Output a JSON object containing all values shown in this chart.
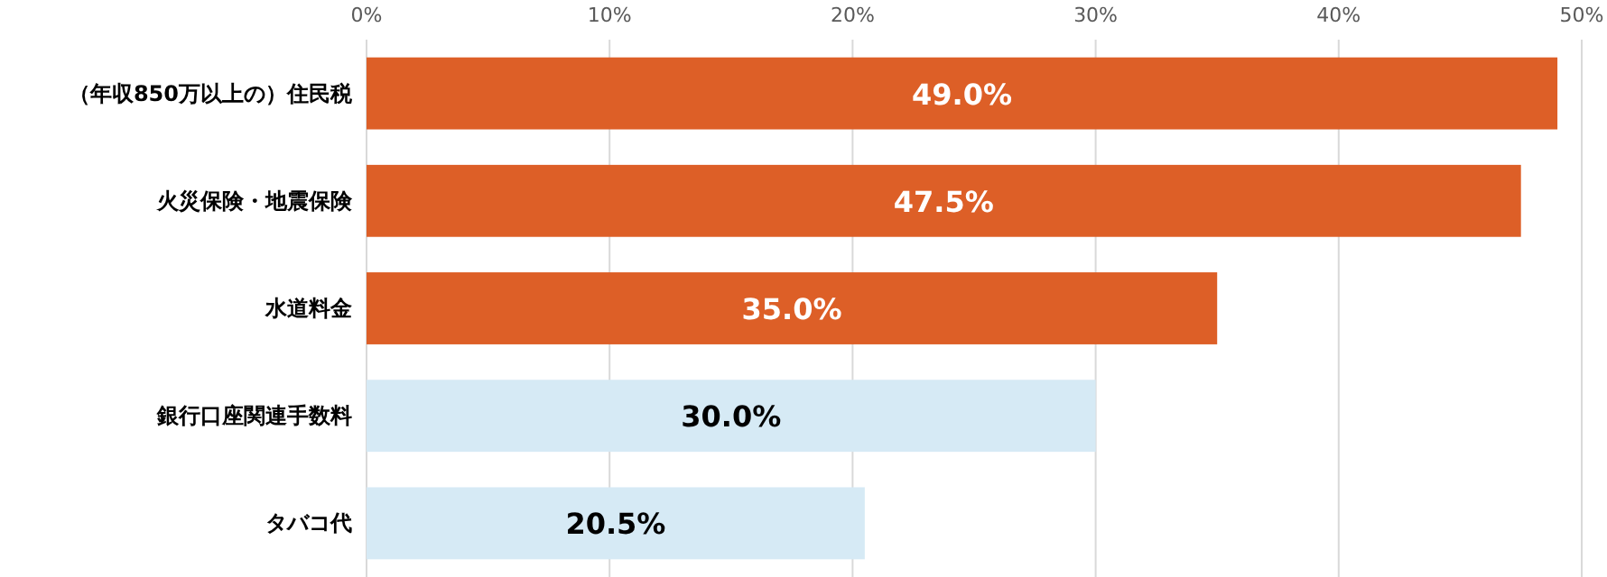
{
  "chart_data": {
    "type": "bar",
    "orientation": "horizontal",
    "categories": [
      "（年収850万以上の）住民税",
      "火災保険・地震保険",
      "水道料金",
      "銀行口座関連手数料",
      "タバコ代"
    ],
    "values": [
      49.0,
      47.5,
      35.0,
      30.0,
      20.5
    ],
    "colors": [
      "#dd5f27",
      "#dd5f27",
      "#dd5f27",
      "#d6eaf5",
      "#d6eaf5"
    ],
    "value_labels": [
      "49.0%",
      "47.5%",
      "35.0%",
      "30.0%",
      "20.5%"
    ],
    "xlim": [
      0,
      50
    ],
    "xticks": [
      {
        "value": 0,
        "label": "0%"
      },
      {
        "value": 10,
        "label": "10%"
      },
      {
        "value": 20,
        "label": "20%"
      },
      {
        "value": 30,
        "label": "30%"
      },
      {
        "value": 40,
        "label": "40%"
      },
      {
        "value": 50,
        "label": "50%"
      }
    ],
    "grid": "x"
  }
}
